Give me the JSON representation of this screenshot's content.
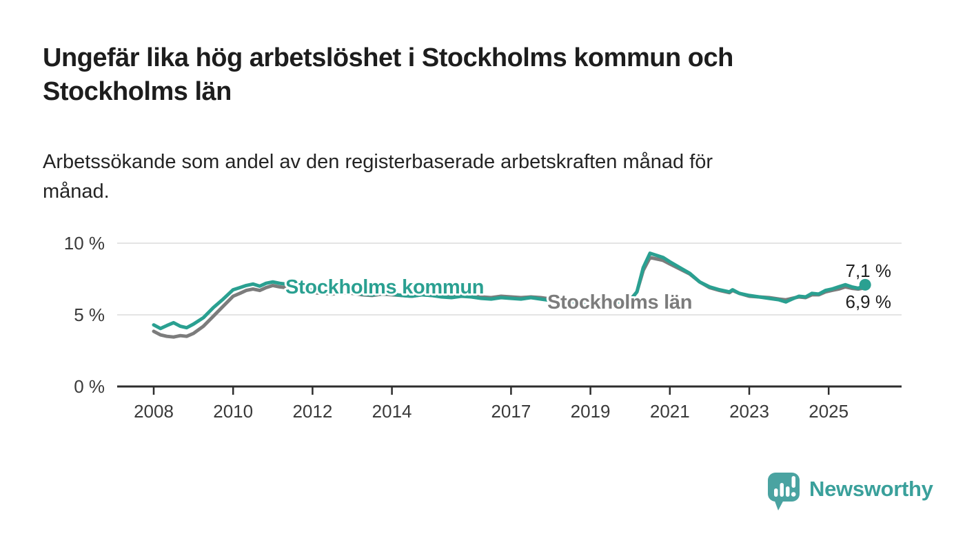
{
  "header": {
    "title_lines": [
      "Ungefär lika hög arbetslöshet i Stockholms kommun och",
      "Stockholms län"
    ],
    "subtitle_lines": [
      "Arbetssökande som andel av den registerbaserade arbetskraften månad för",
      "månad."
    ]
  },
  "chart_data": {
    "type": "line",
    "title": "Ungefär lika hög arbetslöshet i Stockholms kommun och Stockholms län",
    "subtitle": "Arbetssökande som andel av den registerbaserade arbetskraften månad för månad.",
    "unit": "%",
    "grid": "horizontal-only",
    "legend": "inline-series-labels",
    "x_axis": {
      "tick_labels": [
        "2008",
        "2010",
        "2012",
        "2014",
        "2017",
        "2019",
        "2021",
        "2023",
        "2025"
      ],
      "tick_years": [
        2008,
        2010,
        2012,
        2014,
        2017,
        2019,
        2021,
        2023,
        2025
      ],
      "range_years": [
        2008.0,
        2025.92
      ]
    },
    "y_axis": {
      "ticks": [
        0,
        5,
        10
      ],
      "tick_labels": [
        "0 %",
        "5 %",
        "10 %"
      ],
      "range": [
        0,
        10.8
      ]
    },
    "series": [
      {
        "name": "Stockholms län",
        "color": "#7c7c7c",
        "end_value_label": "6,9 %",
        "points": [
          [
            2008.0,
            3.85
          ],
          [
            2008.17,
            3.6
          ],
          [
            2008.33,
            3.5
          ],
          [
            2008.5,
            3.45
          ],
          [
            2008.67,
            3.55
          ],
          [
            2008.83,
            3.5
          ],
          [
            2009.0,
            3.7
          ],
          [
            2009.25,
            4.2
          ],
          [
            2009.5,
            4.9
          ],
          [
            2009.75,
            5.6
          ],
          [
            2010.0,
            6.3
          ],
          [
            2010.17,
            6.5
          ],
          [
            2010.33,
            6.7
          ],
          [
            2010.5,
            6.8
          ],
          [
            2010.67,
            6.7
          ],
          [
            2010.83,
            6.9
          ],
          [
            2011.0,
            7.05
          ],
          [
            2011.17,
            6.95
          ],
          [
            2011.33,
            6.9
          ],
          [
            2011.5,
            6.75
          ],
          [
            2011.67,
            6.6
          ],
          [
            2011.83,
            6.65
          ],
          [
            2012.0,
            6.55
          ],
          [
            2012.25,
            6.5
          ],
          [
            2012.5,
            6.45
          ],
          [
            2012.75,
            6.55
          ],
          [
            2013.0,
            6.5
          ],
          [
            2013.25,
            6.4
          ],
          [
            2013.5,
            6.35
          ],
          [
            2013.75,
            6.45
          ],
          [
            2014.0,
            6.4
          ],
          [
            2014.25,
            6.35
          ],
          [
            2014.5,
            6.3
          ],
          [
            2014.75,
            6.4
          ],
          [
            2015.0,
            6.35
          ],
          [
            2015.25,
            6.3
          ],
          [
            2015.5,
            6.25
          ],
          [
            2015.75,
            6.35
          ],
          [
            2016.0,
            6.3
          ],
          [
            2016.25,
            6.25
          ],
          [
            2016.5,
            6.2
          ],
          [
            2016.75,
            6.3
          ],
          [
            2017.0,
            6.25
          ],
          [
            2017.25,
            6.2
          ],
          [
            2017.5,
            6.25
          ],
          [
            2017.75,
            6.2
          ],
          [
            2018.0,
            6.1
          ],
          [
            2018.25,
            6.0
          ],
          [
            2018.5,
            6.05
          ],
          [
            2018.75,
            5.95
          ],
          [
            2019.0,
            5.9
          ],
          [
            2019.25,
            5.85
          ],
          [
            2019.5,
            5.95
          ],
          [
            2019.75,
            6.0
          ],
          [
            2020.0,
            6.05
          ],
          [
            2020.17,
            6.6
          ],
          [
            2020.33,
            8.1
          ],
          [
            2020.5,
            9.0
          ],
          [
            2020.67,
            8.9
          ],
          [
            2020.83,
            8.8
          ],
          [
            2021.0,
            8.55
          ],
          [
            2021.25,
            8.2
          ],
          [
            2021.5,
            7.85
          ],
          [
            2021.75,
            7.3
          ],
          [
            2022.0,
            6.9
          ],
          [
            2022.25,
            6.7
          ],
          [
            2022.5,
            6.55
          ],
          [
            2022.58,
            6.7
          ],
          [
            2022.75,
            6.5
          ],
          [
            2023.0,
            6.3
          ],
          [
            2023.25,
            6.25
          ],
          [
            2023.5,
            6.2
          ],
          [
            2023.75,
            6.1
          ],
          [
            2023.92,
            6.05
          ],
          [
            2024.08,
            6.15
          ],
          [
            2024.25,
            6.25
          ],
          [
            2024.42,
            6.2
          ],
          [
            2024.58,
            6.4
          ],
          [
            2024.75,
            6.4
          ],
          [
            2024.92,
            6.6
          ],
          [
            2025.08,
            6.7
          ],
          [
            2025.25,
            6.8
          ],
          [
            2025.42,
            6.95
          ],
          [
            2025.58,
            6.85
          ],
          [
            2025.75,
            6.8
          ],
          [
            2025.92,
            6.9
          ]
        ]
      },
      {
        "name": "Stockholms kommun",
        "color": "#2aa091",
        "end_value_label": "7,1 %",
        "end_marker": true,
        "points": [
          [
            2008.0,
            4.3
          ],
          [
            2008.17,
            4.05
          ],
          [
            2008.33,
            4.25
          ],
          [
            2008.5,
            4.45
          ],
          [
            2008.67,
            4.2
          ],
          [
            2008.83,
            4.1
          ],
          [
            2009.0,
            4.35
          ],
          [
            2009.25,
            4.8
          ],
          [
            2009.5,
            5.5
          ],
          [
            2009.75,
            6.1
          ],
          [
            2010.0,
            6.75
          ],
          [
            2010.17,
            6.9
          ],
          [
            2010.33,
            7.05
          ],
          [
            2010.5,
            7.15
          ],
          [
            2010.67,
            7.0
          ],
          [
            2010.83,
            7.2
          ],
          [
            2011.0,
            7.3
          ],
          [
            2011.17,
            7.2
          ],
          [
            2011.33,
            7.15
          ],
          [
            2011.5,
            6.95
          ],
          [
            2011.67,
            6.8
          ],
          [
            2011.83,
            6.85
          ],
          [
            2012.0,
            6.7
          ],
          [
            2012.25,
            6.6
          ],
          [
            2012.5,
            6.55
          ],
          [
            2012.75,
            6.65
          ],
          [
            2013.0,
            6.55
          ],
          [
            2013.25,
            6.45
          ],
          [
            2013.5,
            6.4
          ],
          [
            2013.75,
            6.5
          ],
          [
            2014.0,
            6.45
          ],
          [
            2014.25,
            6.35
          ],
          [
            2014.5,
            6.3
          ],
          [
            2014.75,
            6.4
          ],
          [
            2015.0,
            6.35
          ],
          [
            2015.25,
            6.25
          ],
          [
            2015.5,
            6.2
          ],
          [
            2015.75,
            6.3
          ],
          [
            2016.0,
            6.25
          ],
          [
            2016.25,
            6.15
          ],
          [
            2016.5,
            6.1
          ],
          [
            2016.75,
            6.2
          ],
          [
            2017.0,
            6.15
          ],
          [
            2017.25,
            6.1
          ],
          [
            2017.5,
            6.2
          ],
          [
            2017.75,
            6.1
          ],
          [
            2018.0,
            6.0
          ],
          [
            2018.25,
            5.9
          ],
          [
            2018.5,
            5.95
          ],
          [
            2018.75,
            5.8
          ],
          [
            2019.0,
            5.75
          ],
          [
            2019.25,
            5.7
          ],
          [
            2019.5,
            5.85
          ],
          [
            2019.75,
            5.9
          ],
          [
            2020.0,
            6.0
          ],
          [
            2020.17,
            6.6
          ],
          [
            2020.33,
            8.3
          ],
          [
            2020.5,
            9.3
          ],
          [
            2020.67,
            9.15
          ],
          [
            2020.83,
            9.0
          ],
          [
            2021.0,
            8.7
          ],
          [
            2021.25,
            8.3
          ],
          [
            2021.5,
            7.9
          ],
          [
            2021.75,
            7.3
          ],
          [
            2022.0,
            6.95
          ],
          [
            2022.25,
            6.75
          ],
          [
            2022.5,
            6.6
          ],
          [
            2022.58,
            6.75
          ],
          [
            2022.75,
            6.5
          ],
          [
            2023.0,
            6.35
          ],
          [
            2023.25,
            6.25
          ],
          [
            2023.5,
            6.15
          ],
          [
            2023.75,
            6.05
          ],
          [
            2023.92,
            5.9
          ],
          [
            2024.08,
            6.1
          ],
          [
            2024.25,
            6.3
          ],
          [
            2024.42,
            6.25
          ],
          [
            2024.58,
            6.5
          ],
          [
            2024.75,
            6.45
          ],
          [
            2024.92,
            6.7
          ],
          [
            2025.08,
            6.8
          ],
          [
            2025.25,
            6.95
          ],
          [
            2025.42,
            7.1
          ],
          [
            2025.58,
            6.95
          ],
          [
            2025.75,
            6.85
          ],
          [
            2025.92,
            7.1
          ]
        ]
      }
    ],
    "end_labels": [
      {
        "text": "7,1 %",
        "series": "Stockholms kommun"
      },
      {
        "text": "6,9 %",
        "series": "Stockholms län"
      }
    ]
  },
  "branding": {
    "logo_text": "Newsworthy",
    "logo_icon": "speech-bubble-bar-chart-icon",
    "logo_color": "#4aa3a1",
    "logo_text_color": "#3aa09b"
  },
  "colors": {
    "background": "#ffffff",
    "title_text": "#1d1d1d",
    "axis_text": "#3a3a3a",
    "axis_line": "#2d2d2d",
    "gridline": "#dcdcdc",
    "kommun_line": "#2aa091",
    "lan_line": "#7c7c7c",
    "end_label_text": "#1f1f1f"
  }
}
